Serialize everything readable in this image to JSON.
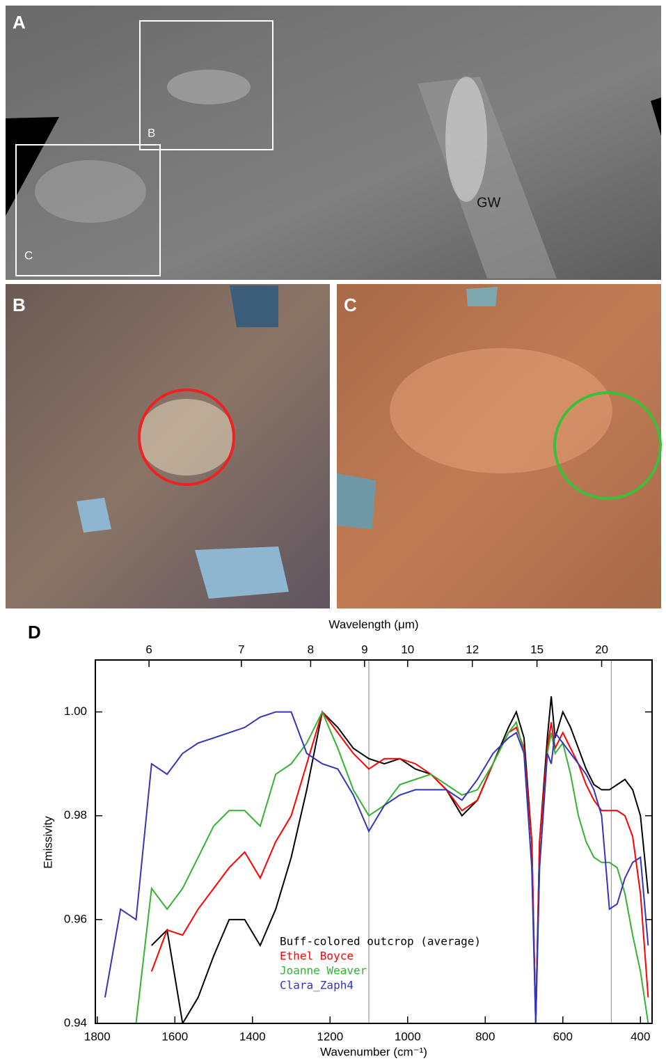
{
  "panels": {
    "a": {
      "label": "A",
      "box_b": "B",
      "box_c": "C",
      "feature": "GW"
    },
    "b": {
      "label": "B"
    },
    "c": {
      "label": "C"
    }
  },
  "chart_data": {
    "type": "line",
    "panel_label": "D",
    "xlabel": "Wavenumber (cm⁻¹)",
    "ylabel": "Emissivity",
    "x2label": "Wavelength (μm)",
    "xlim": [
      1805,
      370
    ],
    "ylim": [
      0.94,
      1.01
    ],
    "xticks": [
      1800,
      1600,
      1400,
      1200,
      1000,
      800,
      600,
      400
    ],
    "yticks": [
      {
        "value": 1,
        "label": "1.00"
      },
      0.98,
      0.96,
      0.94
    ],
    "x2ticks": [
      6,
      7,
      8,
      9,
      10,
      12,
      15,
      20
    ],
    "reference_lines": [
      1100,
      475
    ],
    "x": [
      1780,
      1740,
      1700,
      1660,
      1620,
      1580,
      1540,
      1500,
      1460,
      1420,
      1380,
      1340,
      1300,
      1260,
      1220,
      1180,
      1140,
      1100,
      1060,
      1020,
      980,
      940,
      900,
      860,
      820,
      780,
      740,
      720,
      700,
      680,
      670,
      660,
      640,
      630,
      620,
      600,
      580,
      560,
      540,
      520,
      500,
      480,
      460,
      440,
      420,
      400,
      380
    ],
    "series": [
      {
        "name": "Buff-colored outcrop (average)",
        "color": "#000000",
        "values": [
          null,
          null,
          null,
          0.955,
          0.958,
          0.94,
          0.945,
          0.953,
          0.96,
          0.96,
          0.955,
          0.962,
          0.972,
          0.985,
          1.0,
          0.997,
          0.993,
          0.991,
          0.99,
          0.991,
          0.989,
          0.988,
          0.985,
          0.98,
          0.983,
          0.99,
          0.997,
          1.0,
          0.995,
          0.975,
          0.94,
          0.975,
          0.995,
          1.003,
          0.995,
          1.0,
          0.997,
          0.993,
          0.989,
          0.986,
          0.985,
          0.985,
          0.986,
          0.987,
          0.985,
          0.98,
          0.965
        ]
      },
      {
        "name": "Ethel Boyce",
        "color": "#ff0000",
        "values": [
          null,
          null,
          null,
          0.95,
          0.958,
          0.957,
          0.962,
          0.966,
          0.97,
          0.973,
          0.968,
          0.975,
          0.98,
          0.99,
          1.0,
          0.996,
          0.992,
          0.989,
          0.991,
          0.991,
          0.99,
          0.988,
          0.985,
          0.981,
          0.983,
          0.99,
          0.996,
          0.997,
          0.993,
          0.975,
          0.94,
          0.975,
          0.993,
          0.998,
          0.993,
          0.996,
          0.993,
          0.99,
          0.986,
          0.983,
          0.981,
          0.981,
          0.981,
          0.98,
          0.976,
          0.965,
          0.945
        ]
      },
      {
        "name": "Joanne Weaver",
        "color": "#33b233",
        "values": [
          null,
          null,
          0.94,
          0.966,
          0.962,
          0.966,
          0.972,
          0.978,
          0.981,
          0.981,
          0.978,
          0.988,
          0.99,
          0.994,
          1.0,
          0.993,
          0.985,
          0.98,
          0.982,
          0.986,
          0.987,
          0.988,
          0.986,
          0.984,
          0.985,
          0.99,
          0.996,
          0.998,
          0.992,
          0.97,
          0.94,
          0.97,
          0.992,
          0.996,
          0.992,
          0.994,
          0.988,
          0.98,
          0.975,
          0.972,
          0.971,
          0.971,
          0.97,
          0.965,
          0.957,
          0.95,
          0.94
        ]
      },
      {
        "name": "Clara_Zaph4",
        "color": "#3333bb",
        "values": [
          0.945,
          0.962,
          0.96,
          0.99,
          0.988,
          0.992,
          0.994,
          0.995,
          0.996,
          0.997,
          0.999,
          1.0,
          1.0,
          0.992,
          0.99,
          0.989,
          0.984,
          0.977,
          0.982,
          0.984,
          0.985,
          0.985,
          0.985,
          0.983,
          0.987,
          0.992,
          0.995,
          0.996,
          0.992,
          0.97,
          0.94,
          0.97,
          0.992,
          0.99,
          0.996,
          0.994,
          0.992,
          0.99,
          0.988,
          0.985,
          0.98,
          0.962,
          0.963,
          0.968,
          0.971,
          0.972,
          0.955
        ]
      }
    ]
  }
}
